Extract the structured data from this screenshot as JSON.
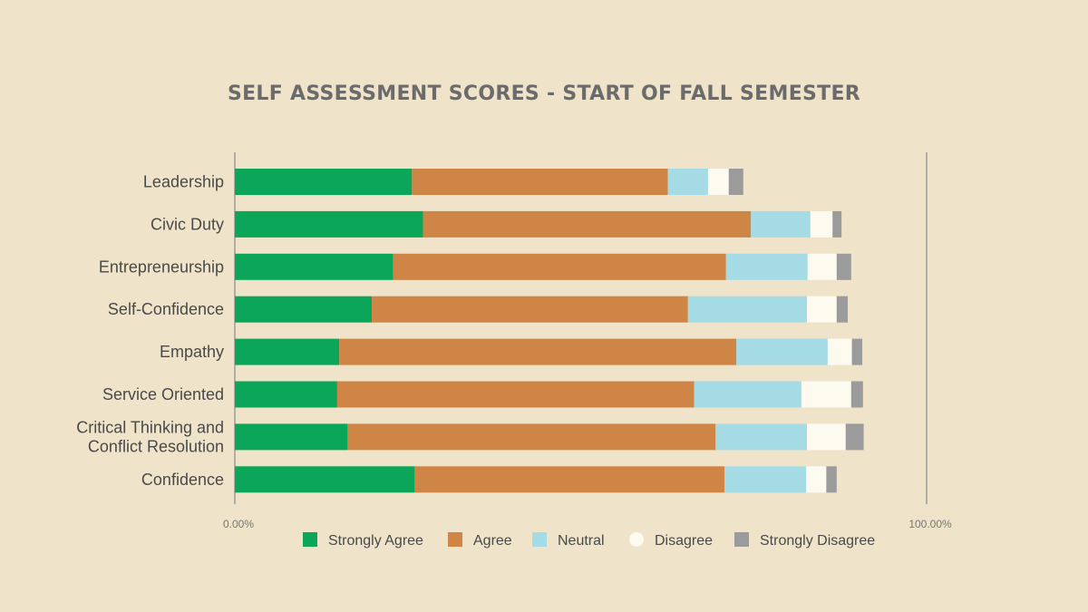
{
  "chart_data": {
    "type": "bar",
    "orientation": "horizontal",
    "stacked": true,
    "title": "SELF ASSESSMENT SCORES - START OF FALL SEMESTER",
    "categories": [
      "Leadership",
      "Civic Duty",
      "Entrepreneurship",
      "Self-Confidence",
      "Empathy",
      "Service Oriented",
      "Critical Thinking and Conflict Resolution",
      "Confidence"
    ],
    "category_lines": [
      [
        "Leadership"
      ],
      [
        "Civic Duty"
      ],
      [
        "Entrepreneurship"
      ],
      [
        "Self-Confidence"
      ],
      [
        "Empathy"
      ],
      [
        "Service Oriented"
      ],
      [
        "Critical Thinking and",
        "Conflict Resolution"
      ],
      [
        "Confidence"
      ]
    ],
    "series": [
      {
        "name": "Strongly Agree",
        "color": "#0ca65a",
        "values": [
          25.6,
          27.2,
          22.9,
          19.8,
          15.1,
          14.8,
          16.3,
          26.0
        ]
      },
      {
        "name": "Agree",
        "color": "#cf8546",
        "values": [
          37.0,
          47.4,
          48.1,
          45.7,
          57.4,
          51.6,
          53.2,
          44.8
        ]
      },
      {
        "name": "Neutral",
        "color": "#a4dbe4",
        "values": [
          5.8,
          8.6,
          11.8,
          17.2,
          13.2,
          15.5,
          13.2,
          11.8
        ]
      },
      {
        "name": "Disagree",
        "color": "#fdfaf0",
        "values": [
          3.0,
          3.2,
          4.2,
          4.3,
          3.5,
          7.2,
          5.6,
          2.9
        ]
      },
      {
        "name": "Strongly Disagree",
        "color": "#9b9b9b",
        "values": [
          2.1,
          1.3,
          2.1,
          1.6,
          1.5,
          1.7,
          2.6,
          1.5
        ]
      }
    ],
    "xlim": [
      0,
      100
    ],
    "x_tick_labels": [
      "0.00%",
      "100.00%"
    ],
    "legend_position": "bottom",
    "background": "#efe3c9"
  }
}
